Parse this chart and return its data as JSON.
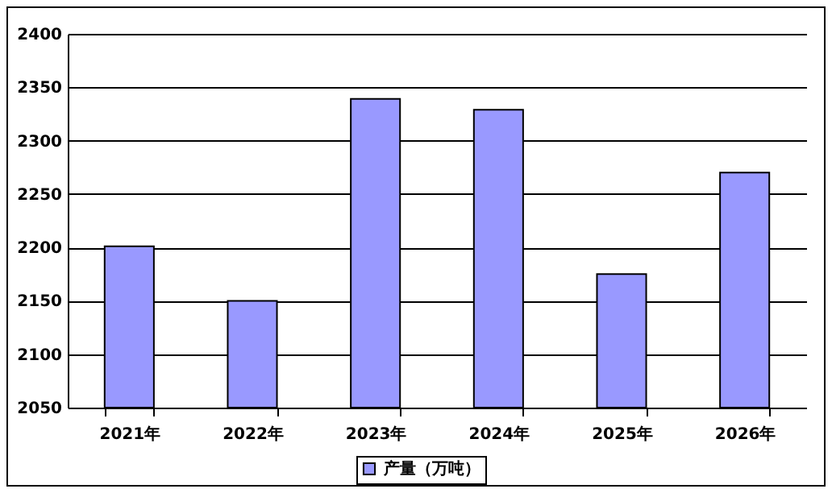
{
  "chart_data": {
    "type": "bar",
    "categories": [
      "2021年",
      "2022年",
      "2023年",
      "2024年",
      "2025年",
      "2026年"
    ],
    "series": [
      {
        "name": "产量（万吨）",
        "color": "#9999ff",
        "values": [
          2201,
          2150,
          2339,
          2329,
          2175,
          2270
        ]
      }
    ],
    "ylim": [
      2050,
      2400
    ],
    "yticks": [
      2050,
      2100,
      2150,
      2200,
      2250,
      2300,
      2350,
      2400
    ],
    "grid": "y",
    "legend": "bottom"
  }
}
